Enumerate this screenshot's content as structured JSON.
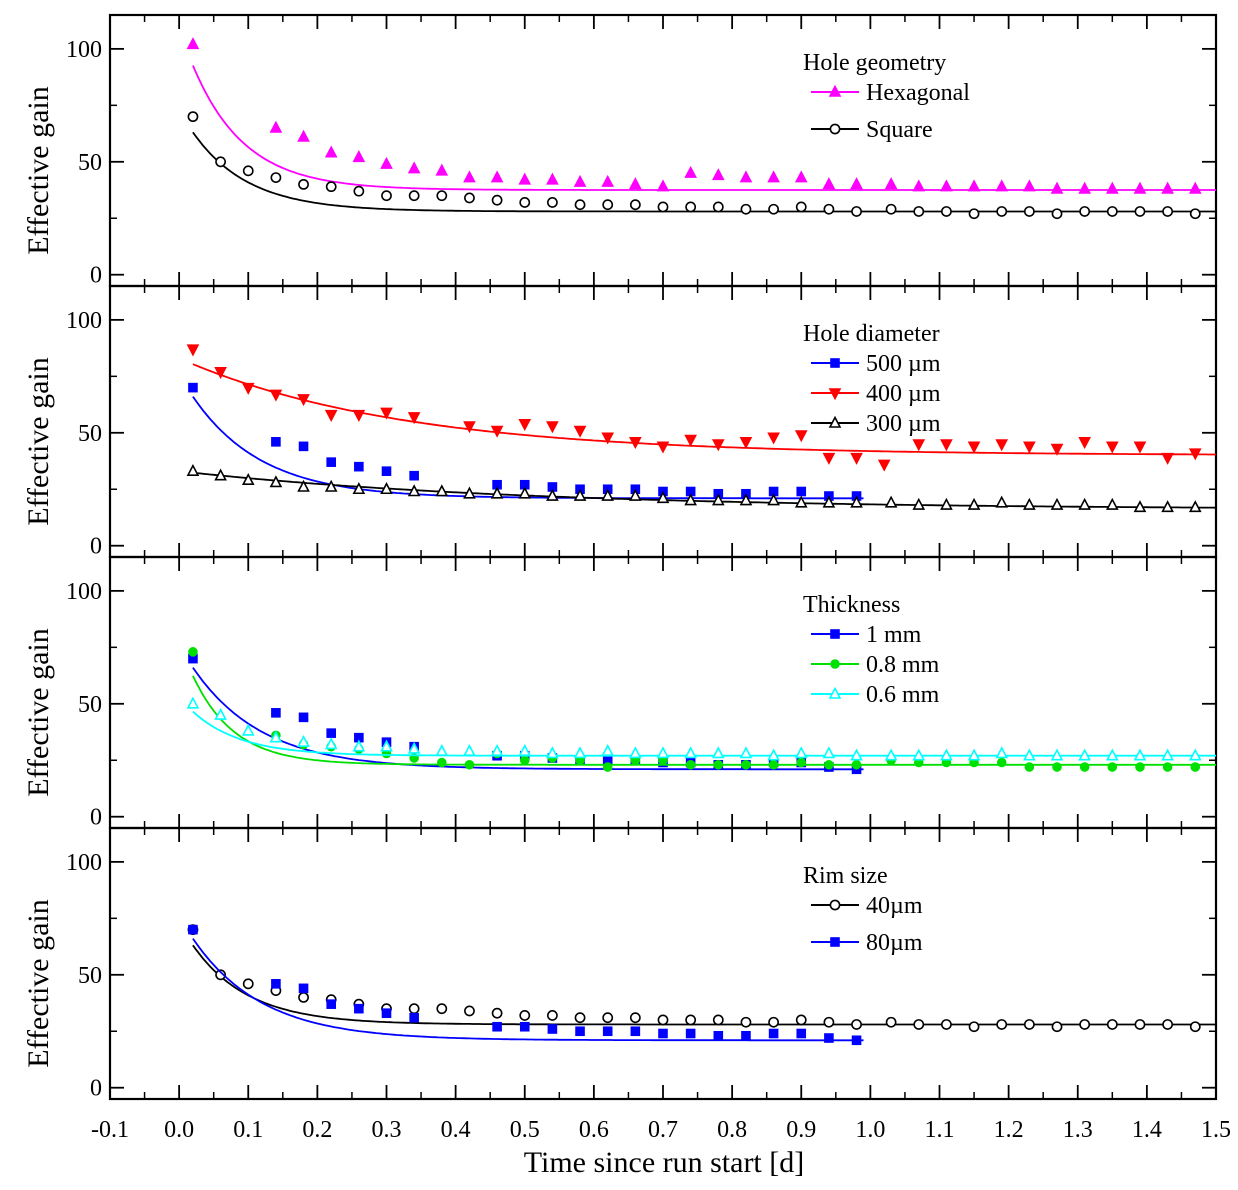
{
  "chart_data": {
    "type": "scatter",
    "xlabel": "Time since run start [d]",
    "xlim": [
      -0.1,
      1.5
    ],
    "x_ticks": [
      "-0.1",
      "0.0",
      "0.1",
      "0.2",
      "0.3",
      "0.4",
      "0.5",
      "0.6",
      "0.7",
      "0.8",
      "0.9",
      "1.0",
      "1.1",
      "1.2",
      "1.3",
      "1.4",
      "1.5"
    ],
    "grid": false,
    "panels": [
      {
        "ylabel": "Effective gain",
        "ylim": [
          -5,
          115
        ],
        "y_ticks": [
          "0",
          "50",
          "100"
        ],
        "legend_title": "Hole geometry",
        "legend_position": "top-right",
        "series": [
          {
            "name": "Hexagonal",
            "color": "#ff00ff",
            "marker": "triangle-up",
            "filled": true,
            "x": [
              0.02,
              0.14,
              0.18,
              0.22,
              0.26,
              0.3,
              0.34,
              0.38,
              0.42,
              0.46,
              0.5,
              0.54,
              0.58,
              0.62,
              0.66,
              0.7,
              0.74,
              0.78,
              0.82,
              0.86,
              0.9,
              0.94,
              0.98,
              1.03,
              1.07,
              1.11,
              1.15,
              1.19,
              1.23,
              1.27,
              1.31,
              1.35,
              1.39,
              1.43,
              1.47
            ],
            "y": [
              102,
              65,
              61,
              54,
              52,
              49,
              47,
              46,
              43,
              43,
              42,
              42,
              41,
              41,
              40,
              39,
              45,
              44,
              43,
              43,
              43,
              40,
              40,
              40,
              39,
              39,
              39,
              39,
              39,
              38,
              38,
              38,
              38,
              38,
              38
            ],
            "fit": {
              "a": 37.5,
              "b": 72,
              "tau": 0.075
            }
          },
          {
            "name": "Square",
            "color": "#000000",
            "marker": "circle",
            "filled": false,
            "x": [
              0.02,
              0.06,
              0.1,
              0.14,
              0.18,
              0.22,
              0.26,
              0.3,
              0.34,
              0.38,
              0.42,
              0.46,
              0.5,
              0.54,
              0.58,
              0.62,
              0.66,
              0.7,
              0.74,
              0.78,
              0.82,
              0.86,
              0.9,
              0.94,
              0.98,
              1.03,
              1.07,
              1.11,
              1.15,
              1.19,
              1.23,
              1.27,
              1.31,
              1.35,
              1.39,
              1.43,
              1.47
            ],
            "y": [
              70,
              50,
              46,
              43,
              40,
              39,
              37,
              35,
              35,
              35,
              34,
              33,
              32,
              32,
              31,
              31,
              31,
              30,
              30,
              30,
              29,
              29,
              30,
              29,
              28,
              29,
              28,
              28,
              27,
              28,
              28,
              27,
              28,
              28,
              28,
              28,
              27
            ],
            "fit": {
              "a": 28,
              "b": 45,
              "tau": 0.08
            }
          }
        ]
      },
      {
        "ylabel": "Effective gain",
        "ylim": [
          -5,
          115
        ],
        "y_ticks": [
          "0",
          "50",
          "100"
        ],
        "legend_title": "Hole diameter",
        "legend_position": "top-right",
        "series": [
          {
            "name": "500 µm",
            "color": "#0000ff",
            "marker": "square",
            "filled": true,
            "x": [
              0.02,
              0.14,
              0.18,
              0.22,
              0.26,
              0.3,
              0.34,
              0.46,
              0.5,
              0.54,
              0.58,
              0.62,
              0.66,
              0.7,
              0.74,
              0.78,
              0.82,
              0.86,
              0.9,
              0.94,
              0.98
            ],
            "y": [
              70,
              46,
              44,
              37,
              35,
              33,
              31,
              27,
              27,
              26,
              25,
              25,
              25,
              24,
              24,
              23,
              23,
              24,
              24,
              22,
              22
            ],
            "fit": {
              "a": 21,
              "b": 55,
              "tau": 0.1,
              "xmax": 0.99
            }
          },
          {
            "name": "400 µm",
            "color": "#ff0000",
            "marker": "triangle-down",
            "filled": true,
            "x": [
              0.02,
              0.06,
              0.1,
              0.14,
              0.18,
              0.22,
              0.26,
              0.3,
              0.34,
              0.42,
              0.46,
              0.5,
              0.54,
              0.58,
              0.62,
              0.66,
              0.7,
              0.74,
              0.78,
              0.82,
              0.86,
              0.9,
              0.94,
              0.98,
              1.02,
              1.07,
              1.11,
              1.15,
              1.19,
              1.23,
              1.27,
              1.31,
              1.35,
              1.39,
              1.43,
              1.47
            ],
            "y": [
              87,
              77,
              70,
              67,
              65,
              58,
              58,
              59,
              57,
              53,
              51,
              54,
              53,
              51,
              48,
              46,
              44,
              47,
              45,
              46,
              48,
              49,
              39,
              39,
              36,
              45,
              45,
              44,
              45,
              44,
              43,
              46,
              44,
              44,
              39,
              41
            ],
            "fit": {
              "a": 40,
              "b": 43,
              "tau": 0.32
            }
          },
          {
            "name": "300 µm",
            "color": "#000000",
            "marker": "triangle-up",
            "filled": false,
            "x": [
              0.02,
              0.06,
              0.1,
              0.14,
              0.18,
              0.22,
              0.26,
              0.3,
              0.34,
              0.38,
              0.42,
              0.46,
              0.5,
              0.54,
              0.58,
              0.62,
              0.66,
              0.7,
              0.74,
              0.78,
              0.82,
              0.86,
              0.9,
              0.94,
              0.98,
              1.03,
              1.07,
              1.11,
              1.15,
              1.19,
              1.23,
              1.27,
              1.31,
              1.35,
              1.39,
              1.43,
              1.47
            ],
            "y": [
              33,
              31,
              29,
              28,
              26,
              26,
              25,
              25,
              24,
              24,
              23,
              23,
              23,
              22,
              22,
              22,
              22,
              21,
              20,
              20,
              20,
              20,
              19,
              19,
              19,
              19,
              18,
              18,
              18,
              19,
              18,
              18,
              18,
              18,
              17,
              17,
              17
            ],
            "fit": {
              "a": 16,
              "b": 17,
              "tau": 0.5
            }
          }
        ]
      },
      {
        "ylabel": "Effective gain",
        "ylim": [
          -5,
          115
        ],
        "y_ticks": [
          "0",
          "50",
          "100"
        ],
        "legend_title": "Thickness",
        "legend_position": "top-right",
        "series": [
          {
            "name": "1 mm",
            "color": "#0000ff",
            "marker": "square",
            "filled": true,
            "x": [
              0.02,
              0.14,
              0.18,
              0.22,
              0.26,
              0.3,
              0.34,
              0.46,
              0.5,
              0.54,
              0.58,
              0.62,
              0.66,
              0.7,
              0.74,
              0.78,
              0.82,
              0.86,
              0.9,
              0.94,
              0.98
            ],
            "y": [
              70,
              46,
              44,
              37,
              35,
              33,
              31,
              27,
              27,
              26,
              25,
              25,
              25,
              24,
              24,
              23,
              23,
              24,
              24,
              22,
              21
            ],
            "fit": {
              "a": 21,
              "b": 55,
              "tau": 0.1,
              "xmax": 0.99
            }
          },
          {
            "name": "0.8 mm",
            "color": "#00e000",
            "marker": "circle",
            "filled": true,
            "x": [
              0.02,
              0.14,
              0.18,
              0.22,
              0.26,
              0.3,
              0.34,
              0.38,
              0.42,
              0.46,
              0.5,
              0.54,
              0.58,
              0.62,
              0.66,
              0.7,
              0.74,
              0.78,
              0.82,
              0.86,
              0.9,
              0.94,
              0.98,
              1.03,
              1.07,
              1.11,
              1.15,
              1.19,
              1.23,
              1.27,
              1.31,
              1.35,
              1.39,
              1.43,
              1.47
            ],
            "y": [
              73,
              36,
              32,
              31,
              30,
              28,
              26,
              24,
              23,
              28,
              25,
              26,
              25,
              22,
              25,
              25,
              23,
              23,
              23,
              23,
              24,
              23,
              23,
              25,
              24,
              24,
              24,
              24,
              22,
              22,
              22,
              22,
              22,
              22,
              22
            ],
            "fit": {
              "a": 23,
              "b": 55,
              "tau": 0.06
            }
          },
          {
            "name": "0.6 mm",
            "color": "#00ffff",
            "marker": "triangle-up",
            "filled": false,
            "x": [
              0.02,
              0.06,
              0.1,
              0.14,
              0.18,
              0.22,
              0.26,
              0.3,
              0.34,
              0.38,
              0.42,
              0.46,
              0.5,
              0.54,
              0.58,
              0.62,
              0.66,
              0.7,
              0.74,
              0.78,
              0.82,
              0.86,
              0.9,
              0.94,
              0.98,
              1.03,
              1.07,
              1.11,
              1.15,
              1.19,
              1.23,
              1.27,
              1.31,
              1.35,
              1.39,
              1.43,
              1.47
            ],
            "y": [
              50,
              45,
              38,
              35,
              33,
              32,
              31,
              31,
              30,
              29,
              29,
              29,
              29,
              28,
              28,
              29,
              28,
              28,
              28,
              28,
              28,
              27,
              28,
              28,
              27,
              27,
              27,
              27,
              27,
              28,
              27,
              27,
              27,
              27,
              27,
              27,
              27
            ],
            "fit": {
              "a": 27,
              "b": 26,
              "tau": 0.07
            }
          }
        ]
      },
      {
        "ylabel": "Effective gain",
        "ylim": [
          -5,
          115
        ],
        "y_ticks": [
          "0",
          "50",
          "100"
        ],
        "legend_title": "Rim size",
        "legend_position": "top-right",
        "series": [
          {
            "name": "40µm",
            "color": "#000000",
            "marker": "circle",
            "filled": false,
            "x": [
              0.02,
              0.06,
              0.1,
              0.14,
              0.18,
              0.22,
              0.26,
              0.3,
              0.34,
              0.38,
              0.42,
              0.46,
              0.5,
              0.54,
              0.58,
              0.62,
              0.66,
              0.7,
              0.74,
              0.78,
              0.82,
              0.86,
              0.9,
              0.94,
              0.98,
              1.03,
              1.07,
              1.11,
              1.15,
              1.19,
              1.23,
              1.27,
              1.31,
              1.35,
              1.39,
              1.43,
              1.47
            ],
            "y": [
              70,
              50,
              46,
              43,
              40,
              39,
              37,
              35,
              35,
              35,
              34,
              33,
              32,
              32,
              31,
              31,
              31,
              30,
              30,
              30,
              29,
              29,
              30,
              29,
              28,
              29,
              28,
              28,
              27,
              28,
              28,
              27,
              28,
              28,
              28,
              28,
              27
            ],
            "fit": {
              "a": 28,
              "b": 45,
              "tau": 0.08
            }
          },
          {
            "name": "80µm",
            "color": "#0000ff",
            "marker": "square",
            "filled": true,
            "x": [
              0.02,
              0.14,
              0.18,
              0.22,
              0.26,
              0.3,
              0.34,
              0.46,
              0.5,
              0.54,
              0.58,
              0.62,
              0.66,
              0.7,
              0.74,
              0.78,
              0.82,
              0.86,
              0.9,
              0.94,
              0.98
            ],
            "y": [
              70,
              46,
              44,
              37,
              35,
              33,
              31,
              27,
              27,
              26,
              25,
              25,
              25,
              24,
              24,
              23,
              23,
              24,
              24,
              22,
              21
            ],
            "fit": {
              "a": 21,
              "b": 55,
              "tau": 0.1,
              "xmax": 0.99
            }
          }
        ]
      }
    ]
  }
}
